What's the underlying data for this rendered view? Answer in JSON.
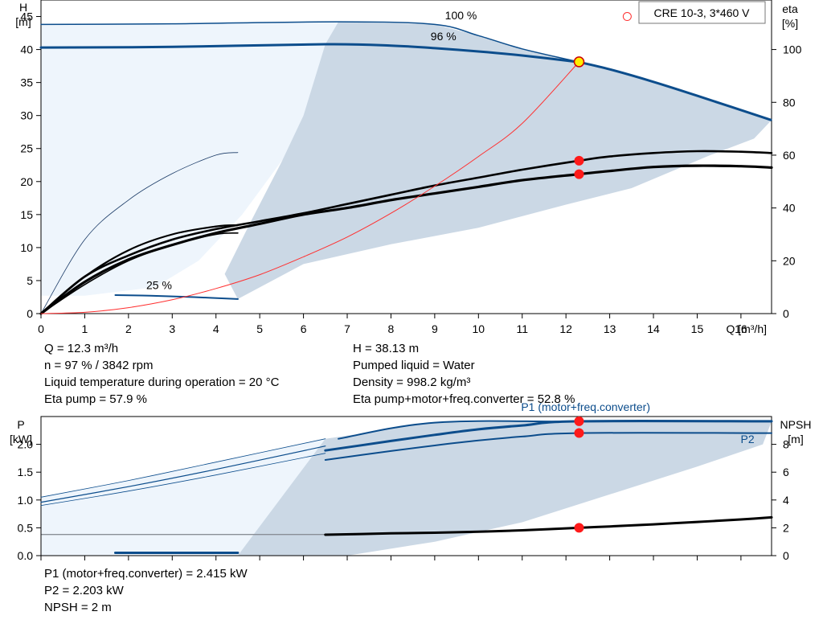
{
  "chart_data": [
    {
      "type": "line",
      "name_box": "CRE 10-3, 3*460 V",
      "x_axis": {
        "label": "Q [m³/h]",
        "range": [
          0,
          16.7
        ],
        "ticks": [
          0,
          1,
          2,
          3,
          4,
          5,
          6,
          7,
          8,
          9,
          10,
          11,
          12,
          13,
          14,
          15,
          16
        ]
      },
      "y_left": {
        "label_top": "H",
        "label_unit": "[m]",
        "range": [
          0,
          47.5
        ],
        "ticks": [
          0,
          5,
          10,
          15,
          20,
          25,
          30,
          35,
          40,
          45
        ]
      },
      "y_right": {
        "label_top": "eta",
        "label_unit": "[%]",
        "range": [
          0,
          118.75
        ],
        "ticks": [
          0,
          20,
          40,
          60,
          80,
          100
        ]
      },
      "curve_labels": [
        {
          "text": "100 %",
          "x": 9.6,
          "y": 44.6
        },
        {
          "text": "96 %",
          "x": 9.2,
          "y": 41.4
        },
        {
          "text": "25 %",
          "x": 2.7,
          "y": 3.7
        }
      ],
      "series": [
        {
          "id": "h100",
          "axis": "left",
          "x": [
            0,
            3,
            6.8,
            9,
            10,
            11,
            12.3,
            13,
            14,
            15,
            16.7
          ],
          "y": [
            43.8,
            43.9,
            44.2,
            43.8,
            42.1,
            40.1,
            38.1,
            37.0,
            35.1,
            33.0,
            29.3
          ]
        },
        {
          "id": "h96",
          "axis": "left",
          "x": [
            0,
            3,
            6.5,
            8,
            9,
            10,
            11,
            12.3
          ],
          "y": [
            40.3,
            40.4,
            40.8,
            40.6,
            40.2,
            39.7,
            39.1,
            38.1
          ]
        },
        {
          "id": "h25",
          "axis": "left",
          "x": [
            1.7,
            2.5,
            3.5,
            4.5
          ],
          "y": [
            2.8,
            2.7,
            2.5,
            2.2
          ]
        },
        {
          "id": "system",
          "axis": "left",
          "x": [
            0,
            1,
            2,
            3,
            4,
            5,
            6,
            7,
            8,
            9,
            10,
            11,
            12.3
          ],
          "y": [
            0,
            0.2,
            0.9,
            2.1,
            3.8,
            5.9,
            8.6,
            11.6,
            15.2,
            19.3,
            23.8,
            28.8,
            38.13
          ]
        },
        {
          "id": "eta_total",
          "axis": "right",
          "x": [
            0,
            1,
            2,
            3,
            4,
            5,
            6,
            7,
            8,
            9,
            10,
            11,
            12.3,
            13,
            14,
            15,
            16,
            16.7
          ],
          "y": [
            0,
            12,
            20.5,
            26,
            30.5,
            34,
            37.5,
            40,
            43,
            45.5,
            48,
            50.5,
            52.8,
            54,
            55.5,
            56,
            55.8,
            55.3
          ]
        },
        {
          "id": "eta_pump",
          "axis": "right",
          "x": [
            0,
            1,
            2,
            3,
            4,
            5,
            6,
            7,
            8,
            9,
            10,
            11,
            12.3,
            13,
            14,
            15,
            16,
            16.7
          ],
          "y": [
            0,
            14,
            22,
            28,
            32,
            35,
            38,
            41.5,
            45,
            48.5,
            51.5,
            54.5,
            57.9,
            59.5,
            60.8,
            61.5,
            61.3,
            60.8
          ]
        },
        {
          "id": "eta_thin",
          "axis": "right",
          "x": [
            0,
            1,
            2,
            3,
            4,
            4.5
          ],
          "y": [
            0,
            28,
            43,
            53,
            60,
            61
          ]
        },
        {
          "id": "eta_25a",
          "axis": "right",
          "x": [
            0,
            1,
            2,
            3,
            4,
            4.5
          ],
          "y": [
            0,
            14,
            24,
            30,
            33,
            33.5
          ]
        },
        {
          "id": "eta_25b",
          "axis": "right",
          "x": [
            0,
            1,
            2,
            3,
            4,
            4.5
          ],
          "y": [
            0,
            11,
            20,
            26,
            30,
            30.5
          ]
        }
      ],
      "operating_point": {
        "q": 12.3,
        "h": 38.13
      },
      "markers": [
        {
          "x": 12.3,
          "y": 57.9,
          "axis": "right"
        },
        {
          "x": 12.3,
          "y": 52.8,
          "axis": "right"
        }
      ],
      "open_marker": {
        "x": 13.4,
        "y": 45,
        "axis": "left"
      },
      "colors": {
        "curve": "#0c4d8c",
        "area_dark": "#cbd8e5",
        "area_light": "#eef5fc",
        "system": "#ff3030",
        "marker": "#ff1a1a",
        "op_fill": "#ffee00"
      }
    },
    {
      "type": "line",
      "x_axis": {
        "range": [
          0,
          16.7
        ],
        "ticks": [
          0,
          1,
          2,
          3,
          4,
          5,
          6,
          7,
          8,
          9,
          10,
          11,
          12,
          13,
          14,
          15,
          16
        ]
      },
      "y_left": {
        "label_top": "P",
        "label_unit": "[kW]",
        "range": [
          0,
          2.5
        ],
        "ticks": [
          "0.0",
          "0.5",
          "1.0",
          "1.5",
          "2.0"
        ]
      },
      "y_right": {
        "label_top": "NPSH",
        "label_unit": "[m]",
        "range": [
          0,
          10
        ],
        "ticks": [
          0,
          2,
          4,
          6,
          8
        ]
      },
      "curve_labels": [
        {
          "text": "P1 (motor+freq.converter)",
          "x": 12.45,
          "y": 2.6
        },
        {
          "text": "P2",
          "x": 16.15,
          "y": 2.02
        }
      ],
      "series": [
        {
          "id": "p1_top",
          "axis": "left",
          "x": [
            6.8,
            9,
            12.3,
            16.7
          ],
          "y": [
            2.1,
            2.39,
            2.41,
            2.41
          ]
        },
        {
          "id": "p1",
          "axis": "left",
          "x": [
            6.5,
            8,
            9,
            10,
            11,
            12.3,
            16.7
          ],
          "y": [
            1.89,
            2.06,
            2.17,
            2.27,
            2.34,
            2.415,
            2.415
          ]
        },
        {
          "id": "p2",
          "axis": "left",
          "x": [
            6.5,
            8,
            9,
            10,
            11,
            12.3,
            16.7
          ],
          "y": [
            1.72,
            1.88,
            1.98,
            2.07,
            2.14,
            2.203,
            2.203
          ]
        },
        {
          "id": "p_low1",
          "axis": "left",
          "x": [
            0,
            2,
            4,
            6.5
          ],
          "y": [
            1.05,
            1.35,
            1.68,
            2.1
          ]
        },
        {
          "id": "p_low2",
          "axis": "left",
          "x": [
            0,
            2,
            4,
            6.5
          ],
          "y": [
            0.96,
            1.24,
            1.55,
            1.97
          ]
        },
        {
          "id": "p_low3",
          "axis": "left",
          "x": [
            0,
            2,
            4,
            6.5
          ],
          "y": [
            0.9,
            1.16,
            1.45,
            1.84
          ]
        },
        {
          "id": "p25",
          "axis": "left",
          "x": [
            1.7,
            4.5
          ],
          "y": [
            0.05,
            0.05
          ]
        },
        {
          "id": "npsh",
          "axis": "right",
          "x": [
            6.5,
            8,
            9,
            10,
            11,
            12.3,
            13,
            14,
            15,
            16,
            16.7
          ],
          "y": [
            1.5,
            1.6,
            1.65,
            1.72,
            1.82,
            2.0,
            2.1,
            2.25,
            2.42,
            2.6,
            2.75
          ]
        }
      ],
      "markers": [
        {
          "x": 12.3,
          "y": 2.415,
          "axis": "left"
        },
        {
          "x": 12.3,
          "y": 2.203,
          "axis": "left"
        },
        {
          "x": 12.3,
          "y": 2.0,
          "axis": "right"
        }
      ]
    }
  ],
  "info": {
    "q": "Q = 12.3 m³/h",
    "n": "n = 97 % / 3842 rpm",
    "temp": "Liquid temperature during operation = 20 °C",
    "eta_pump": "Eta pump = 57.9 %",
    "h": "H = 38.13 m",
    "liquid": "Pumped liquid = Water",
    "density": "Density = 998.2 kg/m³",
    "eta_total": "Eta pump+motor+freq.converter = 52.8 %",
    "p1": "P1 (motor+freq.converter) = 2.415 kW",
    "p2": "P2 = 2.203 kW",
    "npsh": "NPSH = 2 m"
  }
}
